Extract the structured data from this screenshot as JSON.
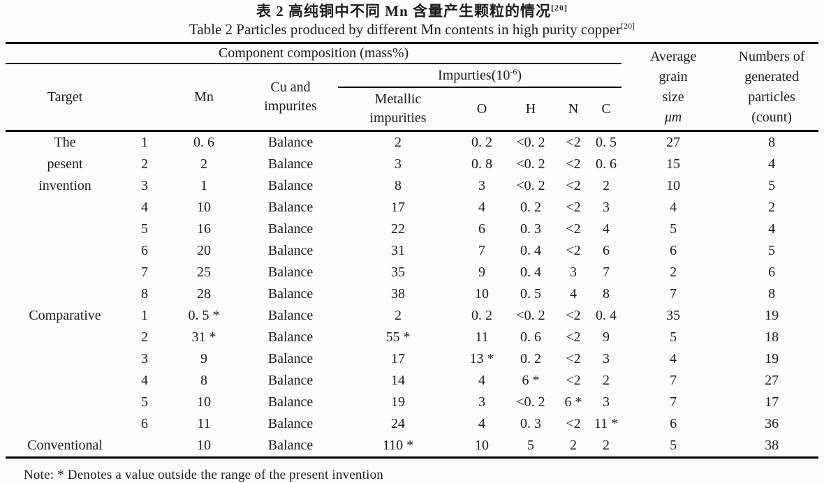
{
  "title": {
    "zh": "表 2  高纯铜中不同 Mn 含量产生颗粒的情况",
    "zh_sup": "[20]",
    "en": "Table 2  Particles produced by different Mn contents in high purity copper",
    "en_sup": "[20]"
  },
  "header": {
    "component_composition": "Component composition (mass%)",
    "target": "Target",
    "no": "",
    "mn": "Mn",
    "cu_line1": "Cu and",
    "cu_line2": "impurites",
    "impurties_base": "Impurties(10",
    "impurties_sup": "-6",
    "impurties_close": ")",
    "metallic_line1": "Metallic",
    "metallic_line2": "impurities",
    "o": "O",
    "h": "H",
    "n": "N",
    "c": "C",
    "avg_lines": [
      "Average",
      "grain",
      "size",
      "μm"
    ],
    "num_lines": [
      "Numbers of",
      "generated",
      "particles",
      "(count)"
    ]
  },
  "table": {
    "columns_order": [
      "target",
      "no",
      "mn",
      "cu",
      "met",
      "o",
      "h",
      "n",
      "c",
      "avg",
      "num"
    ],
    "rows": [
      {
        "target": "The",
        "no": "1",
        "mn": "0. 6",
        "cu": "Balance",
        "met": "2",
        "o": "0. 2",
        "h": "<0. 2",
        "n": "<2",
        "c": "0. 5",
        "avg": "27",
        "num": "8"
      },
      {
        "target": "pesent",
        "no": "2",
        "mn": "2",
        "cu": "Balance",
        "met": "3",
        "o": "0. 8",
        "h": "<0. 2",
        "n": "<2",
        "c": "0. 6",
        "avg": "15",
        "num": "4"
      },
      {
        "target": "invention",
        "no": "3",
        "mn": "1",
        "cu": "Balance",
        "met": "8",
        "o": "3",
        "h": "<0. 2",
        "n": "<2",
        "c": "2",
        "avg": "10",
        "num": "5"
      },
      {
        "target": "",
        "no": "4",
        "mn": "10",
        "cu": "Balance",
        "met": "17",
        "o": "4",
        "h": "0. 2",
        "n": "<2",
        "c": "3",
        "avg": "4",
        "num": "2"
      },
      {
        "target": "",
        "no": "5",
        "mn": "16",
        "cu": "Balance",
        "met": "22",
        "o": "6",
        "h": "0. 3",
        "n": "<2",
        "c": "4",
        "avg": "5",
        "num": "4"
      },
      {
        "target": "",
        "no": "6",
        "mn": "20",
        "cu": "Balance",
        "met": "31",
        "o": "7",
        "h": "0. 4",
        "n": "<2",
        "c": "6",
        "avg": "6",
        "num": "5"
      },
      {
        "target": "",
        "no": "7",
        "mn": "25",
        "cu": "Balance",
        "met": "35",
        "o": "9",
        "h": "0. 4",
        "n": "3",
        "c": "7",
        "avg": "2",
        "num": "6"
      },
      {
        "target": "",
        "no": "8",
        "mn": "28",
        "cu": "Balance",
        "met": "38",
        "o": "10",
        "h": "0. 5",
        "n": "4",
        "c": "8",
        "avg": "7",
        "num": "8"
      },
      {
        "target": "Comparative",
        "no": "1",
        "mn": "0. 5 *",
        "cu": "Balance",
        "met": "2",
        "o": "0. 2",
        "h": "<0. 2",
        "n": "<2",
        "c": "0. 4",
        "avg": "35",
        "num": "19"
      },
      {
        "target": "",
        "no": "2",
        "mn": "31 *",
        "cu": "Balance",
        "met": "55 *",
        "o": "11",
        "h": "0. 6",
        "n": "<2",
        "c": "9",
        "avg": "5",
        "num": "18"
      },
      {
        "target": "",
        "no": "3",
        "mn": "9",
        "cu": "Balance",
        "met": "17",
        "o": "13 *",
        "h": "0. 2",
        "n": "<2",
        "c": "3",
        "avg": "4",
        "num": "19"
      },
      {
        "target": "",
        "no": "4",
        "mn": "8",
        "cu": "Balance",
        "met": "14",
        "o": "4",
        "h": "6 *",
        "n": "<2",
        "c": "2",
        "avg": "7",
        "num": "27"
      },
      {
        "target": "",
        "no": "5",
        "mn": "10",
        "cu": "Balance",
        "met": "19",
        "o": "3",
        "h": "<0. 2",
        "n": "6 *",
        "c": "3",
        "avg": "7",
        "num": "17"
      },
      {
        "target": "",
        "no": "6",
        "mn": "11",
        "cu": "Balance",
        "met": "24",
        "o": "4",
        "h": "0. 3",
        "n": "<2",
        "c": "11 *",
        "avg": "6",
        "num": "36"
      },
      {
        "target": "Conventional",
        "no": "",
        "mn": "10",
        "cu": "Balance",
        "met": "110 *",
        "o": "10",
        "h": "5",
        "n": "2",
        "c": "2",
        "avg": "5",
        "num": "38"
      }
    ]
  },
  "note": "Note: *  Denotes a value outside the range of the present invention",
  "colors": {
    "text": "#1c1c1c",
    "rule": "#000000",
    "background": "#fdfdfb"
  }
}
